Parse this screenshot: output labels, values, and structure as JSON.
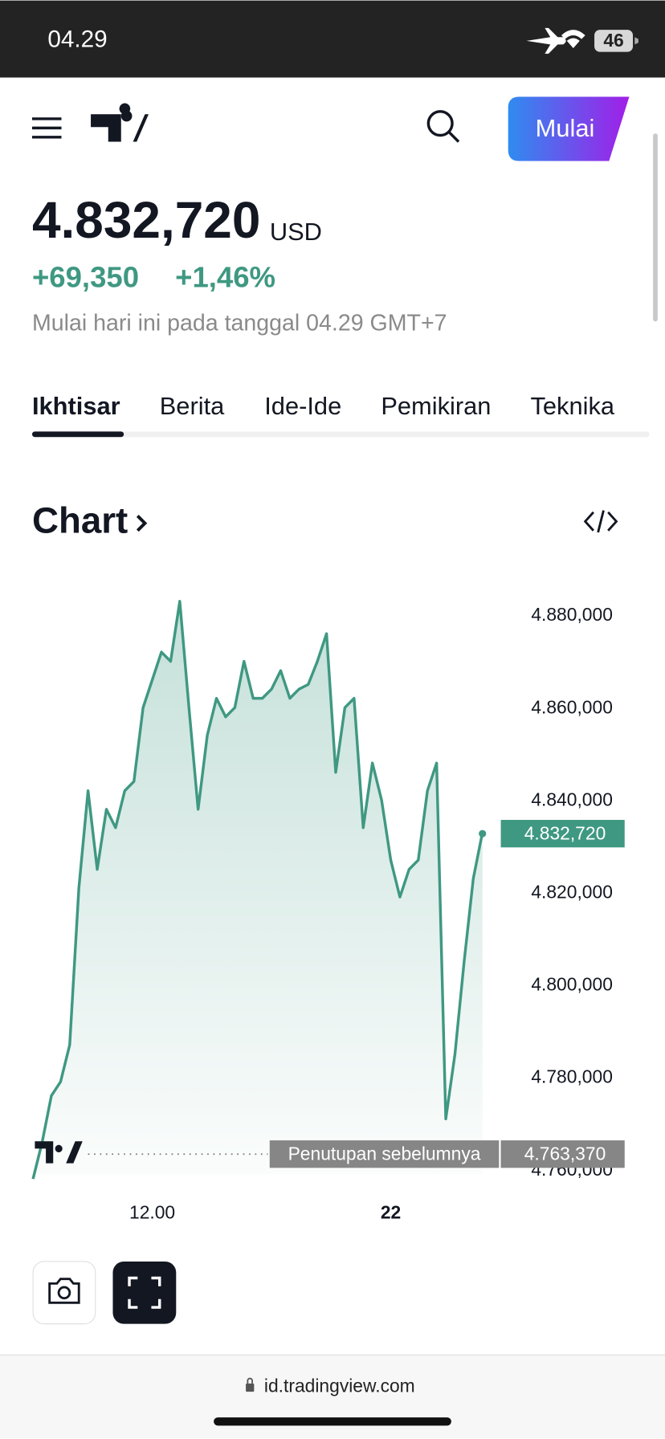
{
  "status_bar": {
    "time": "04.29",
    "battery": "46"
  },
  "header": {
    "button": "Mulai"
  },
  "quote": {
    "price": "4.832,720",
    "currency": "USD",
    "change": "+69,350",
    "change_percent": "+1,46%",
    "note": "Mulai hari ini pada tanggal 04.29 GMT+7"
  },
  "tabs": [
    "Ikhtisar",
    "Berita",
    "Ide-Ide",
    "Pemikiran",
    "Teknika"
  ],
  "section_title": "Chart",
  "chart_data": {
    "type": "line",
    "color": "#3f9882",
    "categories": [
      null,
      null,
      null,
      null,
      null,
      null,
      null,
      null,
      null,
      null,
      null,
      null,
      null,
      "12.00",
      null,
      null,
      null,
      null,
      null,
      null,
      null,
      null,
      null,
      null,
      null,
      null,
      null,
      null,
      null,
      null,
      null,
      null,
      null,
      null,
      null,
      null,
      null,
      null,
      null,
      "22",
      null,
      null,
      null,
      null,
      null,
      null,
      null,
      null,
      null,
      null
    ],
    "values": [
      4758000,
      4766000,
      4776000,
      4779000,
      4787000,
      4821000,
      4842000,
      4825000,
      4838000,
      4834000,
      4842000,
      4844000,
      4860000,
      4866000,
      4872000,
      4870000,
      4883000,
      4860000,
      4838000,
      4854000,
      4862000,
      4858000,
      4860000,
      4870000,
      4862000,
      4862000,
      4864000,
      4868000,
      4862000,
      4864000,
      4865000,
      4870000,
      4876000,
      4846000,
      4860000,
      4862000,
      4834000,
      4848000,
      4840000,
      4827000,
      4819000,
      4825000,
      4827000,
      4842000,
      4848000,
      4771000,
      4785000,
      4805000,
      4823000,
      4833000
    ],
    "ylim": [
      4757000,
      4886000
    ],
    "yticks": [
      {
        "value": 4880000,
        "label": "4.880,000"
      },
      {
        "value": 4860000,
        "label": "4.860,000"
      },
      {
        "value": 4840000,
        "label": "4.840,000"
      },
      {
        "value": 4820000,
        "label": "4.820,000"
      },
      {
        "value": 4800000,
        "label": "4.800,000"
      },
      {
        "value": 4780000,
        "label": "4.780,000"
      },
      {
        "value": 4760000,
        "label": "4.760,000"
      }
    ],
    "last_price": {
      "value": 4832720,
      "label": "4.832,720"
    },
    "previous_close": {
      "name": "Penutupan sebelumnya",
      "value": 4763370,
      "label": "4.763,370"
    }
  },
  "browser": {
    "url": "id.tradingview.com"
  }
}
